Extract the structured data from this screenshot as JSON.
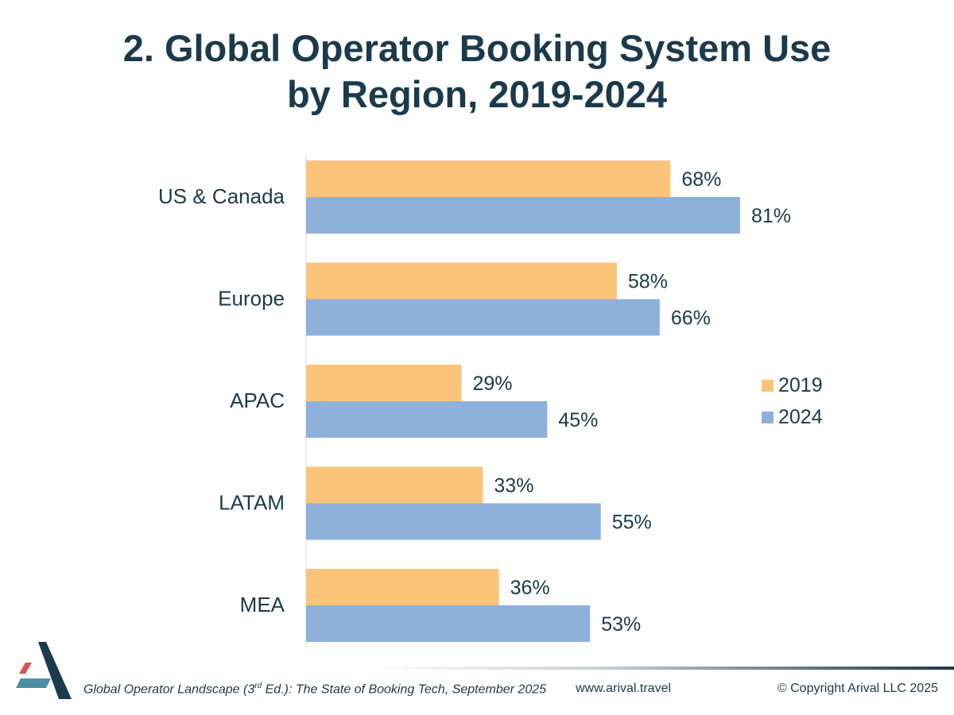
{
  "title": {
    "line1": "2. Global Operator Booking System Use",
    "line2": "by Region, 2019-2024"
  },
  "chart_data": {
    "type": "bar",
    "orientation": "horizontal",
    "categories": [
      "US & Canada",
      "Europe",
      "APAC",
      "LATAM",
      "MEA"
    ],
    "series": [
      {
        "name": "2019",
        "color": "#fcc479",
        "values": [
          68,
          58,
          29,
          33,
          36
        ]
      },
      {
        "name": "2024",
        "color": "#8eb1dc",
        "values": [
          81,
          66,
          45,
          55,
          53
        ]
      }
    ],
    "value_suffix": "%",
    "xlim": [
      0,
      100
    ],
    "grid": false,
    "legend_position": "right",
    "axis_color": "#d9d9d9"
  },
  "footer": {
    "citation_pre": "Global Operator Landscape (3",
    "citation_sup": "rd",
    "citation_post": " Ed.):  The State of Booking Tech, September 2025",
    "website": "www.arival.travel",
    "copyright": "© Copyright Arival LLC 2025"
  },
  "logo": {
    "name": "arival-logo",
    "colors": [
      "#1b3a4b",
      "#d9534f",
      "#4f8fa3"
    ]
  }
}
